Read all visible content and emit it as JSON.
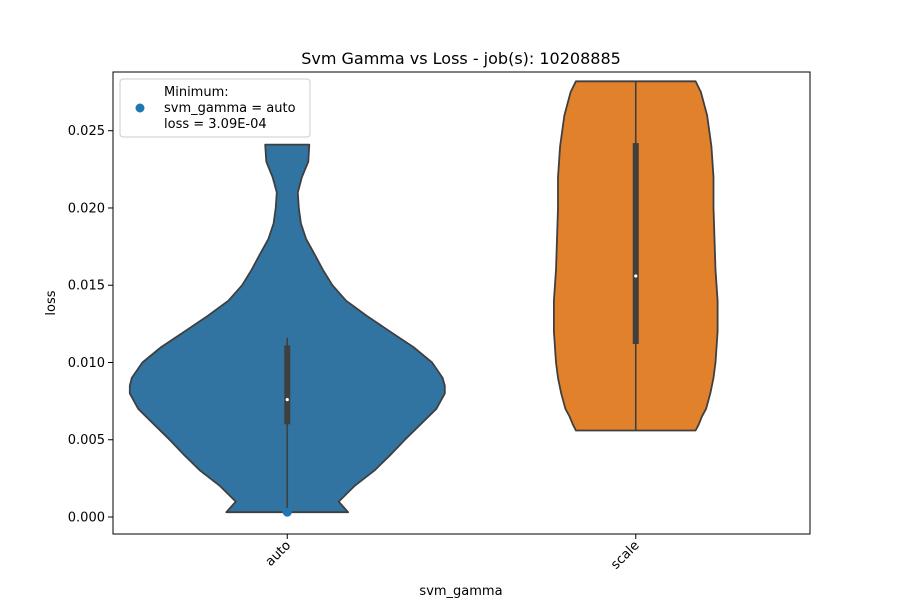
{
  "chart_data": {
    "type": "violin",
    "title": "Svm Gamma vs Loss - job(s): 10208885",
    "xlabel": "svm_gamma",
    "ylabel": "loss",
    "categories": [
      "auto",
      "scale"
    ],
    "ylim": [
      -0.0011,
      0.0288
    ],
    "yticks": [
      0.0,
      0.005,
      0.01,
      0.015,
      0.02,
      0.025
    ],
    "ytick_labels": [
      "0.000",
      "0.005",
      "0.010",
      "0.015",
      "0.020",
      "0.025"
    ],
    "grid": false,
    "legend": {
      "placement": "upper-left",
      "lines": [
        "Minimum:",
        "svm_gamma = auto",
        "loss = 3.09E-04"
      ]
    },
    "minimum_point": {
      "category": "auto",
      "loss": 0.000309,
      "color": "#1f77b4"
    },
    "violins": [
      {
        "category": "auto",
        "color": "#3274a1",
        "min": 0.00031,
        "max": 0.0241,
        "q1": 0.006,
        "median": 0.0076,
        "q3": 0.0111,
        "whisker_high": 0.0116,
        "profile": [
          [
            0.00031,
            0.58
          ],
          [
            0.001,
            0.49
          ],
          [
            0.002,
            0.64
          ],
          [
            0.003,
            0.83
          ],
          [
            0.004,
            0.98
          ],
          [
            0.005,
            1.12
          ],
          [
            0.006,
            1.27
          ],
          [
            0.007,
            1.42
          ],
          [
            0.008,
            1.5
          ],
          [
            0.0085,
            1.5
          ],
          [
            0.009,
            1.48
          ],
          [
            0.01,
            1.38
          ],
          [
            0.011,
            1.2
          ],
          [
            0.012,
            0.98
          ],
          [
            0.013,
            0.76
          ],
          [
            0.014,
            0.56
          ],
          [
            0.015,
            0.43
          ],
          [
            0.016,
            0.34
          ],
          [
            0.017,
            0.26
          ],
          [
            0.018,
            0.18
          ],
          [
            0.019,
            0.13
          ],
          [
            0.02,
            0.11
          ],
          [
            0.021,
            0.1
          ],
          [
            0.022,
            0.14
          ],
          [
            0.023,
            0.2
          ],
          [
            0.0241,
            0.21
          ]
        ]
      },
      {
        "category": "scale",
        "color": "#e1812c",
        "min": 0.0056,
        "max": 0.0282,
        "q1": 0.0112,
        "median": 0.0156,
        "q3": 0.0242,
        "whisker_high": 0.0282,
        "profile": [
          [
            0.0056,
            0.57
          ],
          [
            0.006,
            0.6
          ],
          [
            0.0065,
            0.63
          ],
          [
            0.007,
            0.67
          ],
          [
            0.008,
            0.71
          ],
          [
            0.009,
            0.74
          ],
          [
            0.01,
            0.76
          ],
          [
            0.012,
            0.78
          ],
          [
            0.014,
            0.78
          ],
          [
            0.016,
            0.76
          ],
          [
            0.018,
            0.75
          ],
          [
            0.02,
            0.74
          ],
          [
            0.022,
            0.74
          ],
          [
            0.024,
            0.72
          ],
          [
            0.026,
            0.68
          ],
          [
            0.0275,
            0.62
          ],
          [
            0.0282,
            0.57
          ]
        ]
      }
    ]
  }
}
